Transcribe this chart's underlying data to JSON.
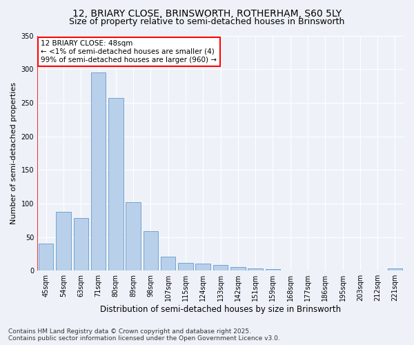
{
  "title1": "12, BRIARY CLOSE, BRINSWORTH, ROTHERHAM, S60 5LY",
  "title2": "Size of property relative to semi-detached houses in Brinsworth",
  "xlabel": "Distribution of semi-detached houses by size in Brinsworth",
  "ylabel": "Number of semi-detached properties",
  "categories": [
    "45sqm",
    "54sqm",
    "63sqm",
    "71sqm",
    "80sqm",
    "89sqm",
    "98sqm",
    "107sqm",
    "115sqm",
    "124sqm",
    "133sqm",
    "142sqm",
    "151sqm",
    "159sqm",
    "168sqm",
    "177sqm",
    "186sqm",
    "195sqm",
    "203sqm",
    "212sqm",
    "221sqm"
  ],
  "values": [
    40,
    88,
    78,
    295,
    257,
    102,
    59,
    21,
    12,
    11,
    8,
    5,
    3,
    2,
    0,
    0,
    0,
    0,
    0,
    0,
    3
  ],
  "bar_color": "#b8d0ea",
  "bar_edge_color": "#6699cc",
  "ylim": [
    0,
    350
  ],
  "yticks": [
    0,
    50,
    100,
    150,
    200,
    250,
    300,
    350
  ],
  "annotation_text": "12 BRIARY CLOSE: 48sqm\n← <1% of semi-detached houses are smaller (4)\n99% of semi-detached houses are larger (960) →",
  "footer1": "Contains HM Land Registry data © Crown copyright and database right 2025.",
  "footer2": "Contains public sector information licensed under the Open Government Licence v3.0.",
  "bg_color": "#eef2f8",
  "grid_color": "#ffffff",
  "title1_fontsize": 10,
  "title2_fontsize": 9,
  "xlabel_fontsize": 8.5,
  "ylabel_fontsize": 8,
  "tick_fontsize": 7,
  "footer_fontsize": 6.5,
  "annot_fontsize": 7.5
}
